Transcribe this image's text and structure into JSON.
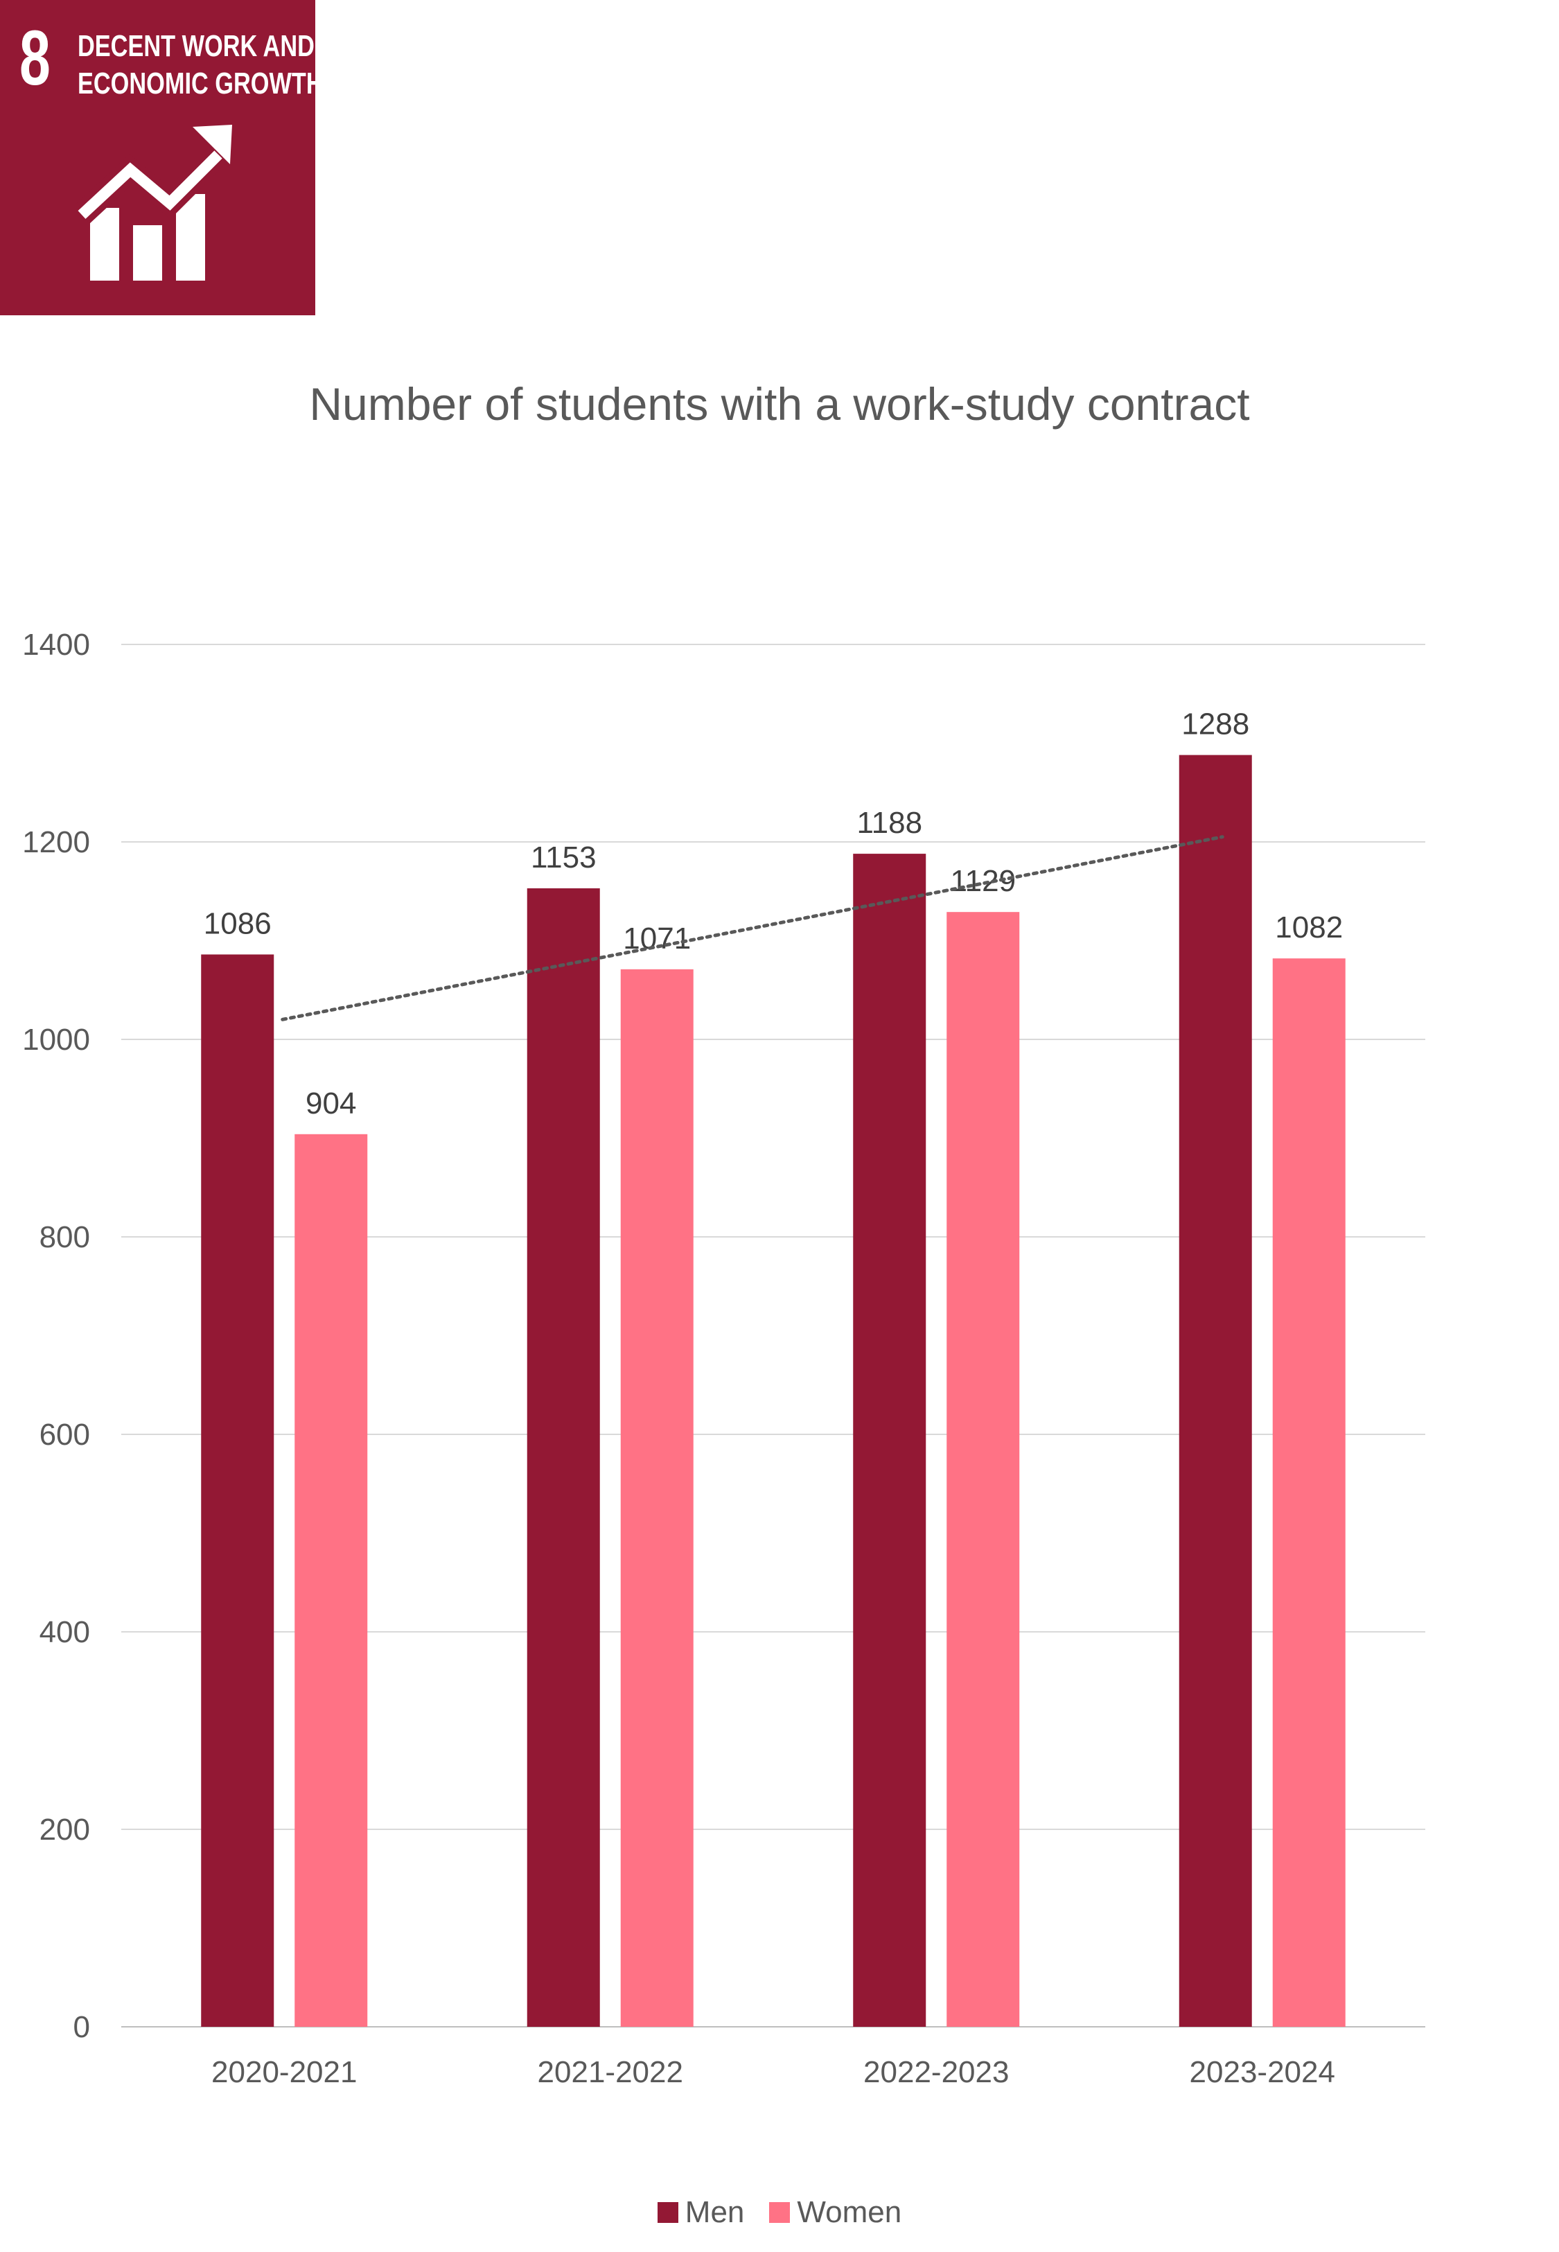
{
  "badge": {
    "number": "8",
    "title_line1": "DECENT WORK AND",
    "title_line2": "ECONOMIC GROWTH",
    "icon": "growth-chart-icon",
    "color": "#931834"
  },
  "chart_data": {
    "type": "bar",
    "title": "Number of students with a work-study contract",
    "categories": [
      "2020-2021",
      "2021-2022",
      "2022-2023",
      "2023-2024"
    ],
    "series": [
      {
        "name": "Men",
        "values": [
          1086,
          1153,
          1188,
          1288
        ],
        "color": "#931834"
      },
      {
        "name": "Women",
        "values": [
          904,
          1071,
          1129,
          1082
        ],
        "color": "#FF7285"
      }
    ],
    "ylim": [
      0,
      1400
    ],
    "yticks": [
      0,
      200,
      400,
      600,
      800,
      1000,
      1200,
      1400
    ],
    "grid": true,
    "trendline": {
      "style": "dotted",
      "color": "#595959"
    },
    "legend_position": "bottom",
    "data_labels": true
  }
}
